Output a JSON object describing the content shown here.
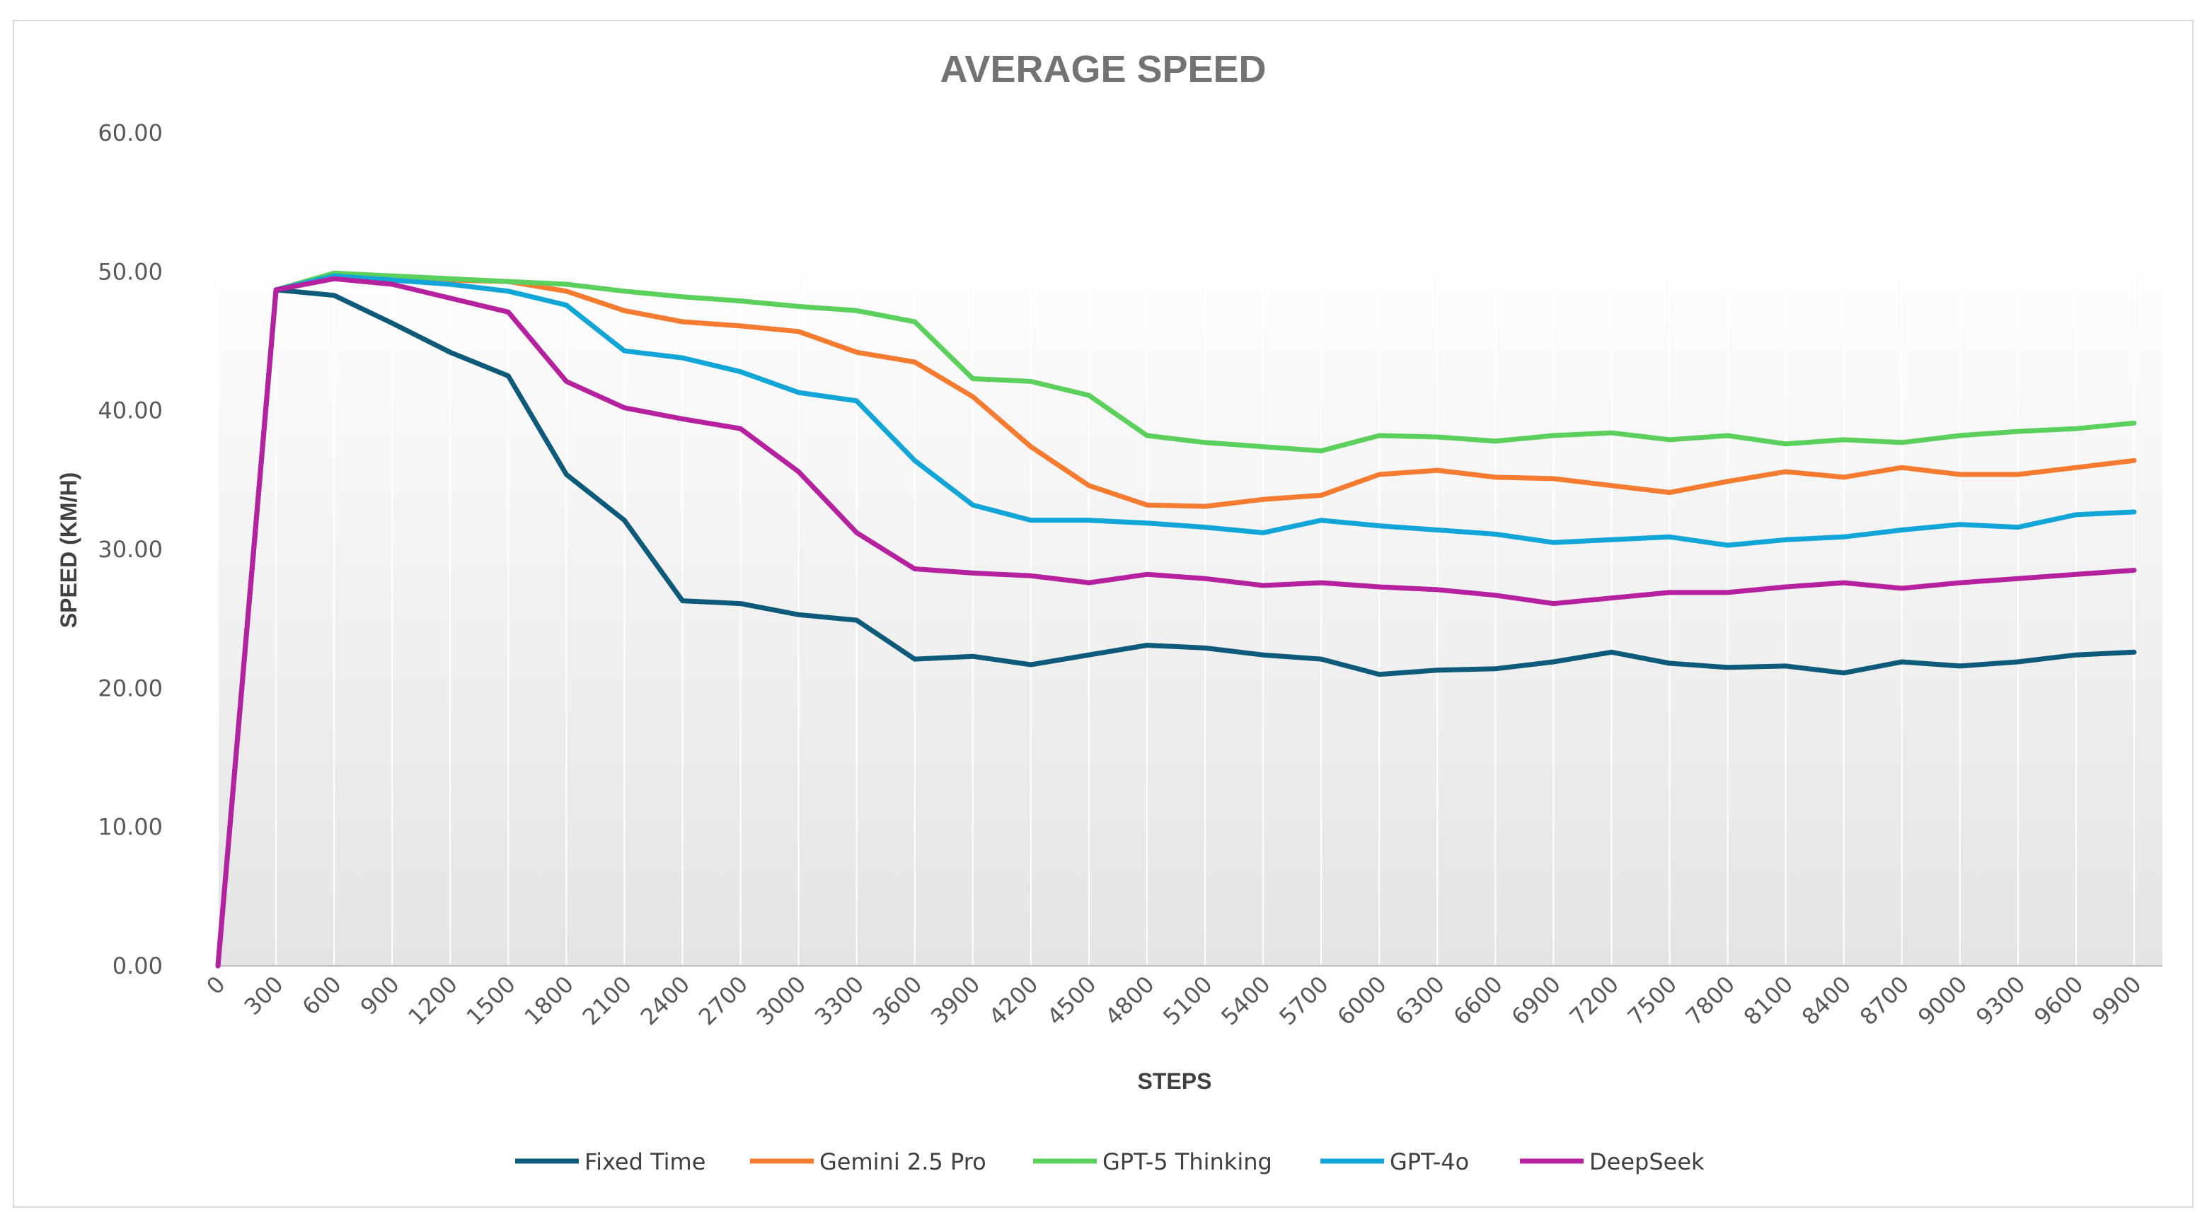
{
  "chart_data": {
    "type": "line",
    "title": "AVERAGE SPEED",
    "xlabel": "STEPS",
    "ylabel": "SPEED (KM/H)",
    "ylim": [
      0,
      60
    ],
    "yticks": [
      "0.00",
      "10.00",
      "20.00",
      "30.00",
      "40.00",
      "50.00",
      "60.00"
    ],
    "categories": [
      "0",
      "300",
      "600",
      "900",
      "1200",
      "1500",
      "1800",
      "2100",
      "2400",
      "2700",
      "3000",
      "3300",
      "3600",
      "3900",
      "4200",
      "4500",
      "4800",
      "5100",
      "5400",
      "5700",
      "6000",
      "6300",
      "6600",
      "6900",
      "7200",
      "7500",
      "7800",
      "8100",
      "8400",
      "8700",
      "9000",
      "9300",
      "9600",
      "9900"
    ],
    "grid": "vertical",
    "legend_position": "bottom",
    "series": [
      {
        "name": "Fixed Time",
        "color": "#0e5a7a",
        "values": [
          0,
          48.7,
          48.3,
          46.3,
          44.2,
          42.5,
          35.4,
          32.1,
          26.3,
          26.1,
          25.3,
          24.9,
          22.1,
          22.3,
          21.7,
          22.4,
          23.1,
          22.9,
          22.4,
          22.1,
          21.0,
          21.3,
          21.4,
          21.9,
          22.6,
          21.8,
          21.5,
          21.6,
          21.1,
          21.9,
          21.6,
          21.9,
          22.4,
          22.6
        ]
      },
      {
        "name": "Gemini 2.5 Pro",
        "color": "#f47b30",
        "values": [
          0,
          48.7,
          49.8,
          49.6,
          49.4,
          49.3,
          48.6,
          47.2,
          46.4,
          46.1,
          45.7,
          44.2,
          43.5,
          41.0,
          37.4,
          34.6,
          33.2,
          33.1,
          33.6,
          33.9,
          35.4,
          35.7,
          35.2,
          35.1,
          34.6,
          34.1,
          34.9,
          35.6,
          35.2,
          35.9,
          35.4,
          35.4,
          35.9,
          36.4
        ]
      },
      {
        "name": "GPT-5 Thinking",
        "color": "#5cd05c",
        "values": [
          0,
          48.7,
          49.9,
          49.7,
          49.5,
          49.3,
          49.1,
          48.6,
          48.2,
          47.9,
          47.5,
          47.2,
          46.4,
          42.3,
          42.1,
          41.1,
          38.2,
          37.7,
          37.4,
          37.1,
          38.2,
          38.1,
          37.8,
          38.2,
          38.4,
          37.9,
          38.2,
          37.6,
          37.9,
          37.7,
          38.2,
          38.5,
          38.7,
          39.1
        ]
      },
      {
        "name": "GPT-4o",
        "color": "#12a5d8",
        "values": [
          0,
          48.7,
          49.7,
          49.4,
          49.1,
          48.6,
          47.6,
          44.3,
          43.8,
          42.8,
          41.3,
          40.7,
          36.4,
          33.2,
          32.1,
          32.1,
          31.9,
          31.6,
          31.2,
          32.1,
          31.7,
          31.4,
          31.1,
          30.5,
          30.7,
          30.9,
          30.3,
          30.7,
          30.9,
          31.4,
          31.8,
          31.6,
          32.5,
          32.7
        ]
      },
      {
        "name": "DeepSeek",
        "color": "#b5219e",
        "values": [
          0,
          48.7,
          49.5,
          49.1,
          48.1,
          47.1,
          42.1,
          40.2,
          39.4,
          38.7,
          35.6,
          31.2,
          28.6,
          28.3,
          28.1,
          27.6,
          28.2,
          27.9,
          27.4,
          27.6,
          27.3,
          27.1,
          26.7,
          26.1,
          26.5,
          26.9,
          26.9,
          27.3,
          27.6,
          27.2,
          27.6,
          27.9,
          28.2,
          28.5
        ]
      }
    ]
  }
}
